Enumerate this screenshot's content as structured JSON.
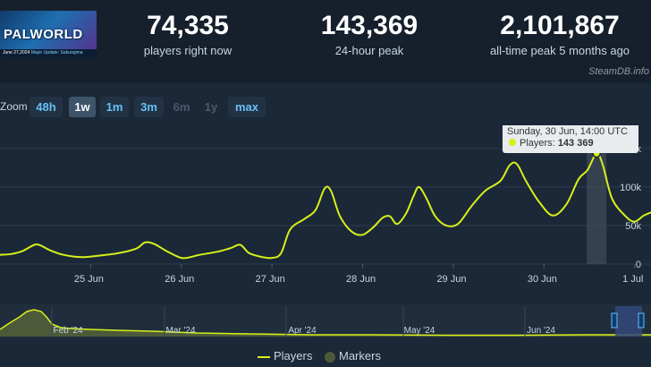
{
  "game": {
    "logo_text": "PALWORLD",
    "banner_date": "June 27,2024",
    "banner_update": "Major Update: Sakurajima"
  },
  "stats": [
    {
      "value": "74,335",
      "label": "players right now"
    },
    {
      "value": "143,369",
      "label": "24-hour peak"
    },
    {
      "value": "2,101,867",
      "label": "all-time peak 5 months ago"
    }
  ],
  "credit": "SteamDB.info",
  "zoom": {
    "label": "Zoom",
    "buttons": [
      {
        "label": "48h",
        "state": "normal"
      },
      {
        "label": "1w",
        "state": "active"
      },
      {
        "label": "1m",
        "state": "normal"
      },
      {
        "label": "3m",
        "state": "normal"
      },
      {
        "label": "6m",
        "state": "disabled"
      },
      {
        "label": "1y",
        "state": "disabled"
      },
      {
        "label": "max",
        "state": "normal"
      }
    ]
  },
  "tooltip": {
    "title": "Sunday, 30 Jun, 14:00 UTC",
    "series_label": "Players:",
    "value_text": "143 369"
  },
  "legend": {
    "players": "Players",
    "markers": "Markers"
  },
  "colors": {
    "line": "#d6f01a",
    "background": "#1b2838",
    "header_bg": "#16202d",
    "accent": "#67c1f5",
    "hover_band": "#4a5561"
  },
  "chart_data": {
    "type": "line",
    "x_unit": "days from 24 Jun 2024 00:00 UTC",
    "ylim": [
      0,
      180000
    ],
    "ytick_labels": [
      "0",
      "50k",
      "100k",
      "150k"
    ],
    "ytick_values": [
      0,
      50000,
      100000,
      150000
    ],
    "xtick_labels": [
      "25 Jun",
      "26 Jun",
      "27 Jun",
      "28 Jun",
      "29 Jun",
      "30 Jun",
      "1 Jul"
    ],
    "xtick_values": [
      1,
      2,
      3,
      4,
      5,
      6,
      7
    ],
    "grid": true,
    "hover": {
      "x": 6.58,
      "y": 143369
    },
    "series": [
      {
        "name": "Players",
        "x": [
          0,
          0.12,
          0.25,
          0.38,
          0.45,
          0.55,
          0.7,
          0.9,
          1.1,
          1.3,
          1.5,
          1.6,
          1.7,
          1.85,
          2.0,
          2.1,
          2.2,
          2.4,
          2.55,
          2.65,
          2.75,
          2.9,
          3.0,
          3.1,
          3.2,
          3.35,
          3.48,
          3.58,
          3.65,
          3.75,
          3.88,
          4.0,
          4.12,
          4.22,
          4.3,
          4.38,
          4.48,
          4.56,
          4.62,
          4.7,
          4.8,
          4.92,
          5.05,
          5.2,
          5.35,
          5.52,
          5.62,
          5.7,
          5.8,
          5.95,
          6.1,
          6.25,
          6.38,
          6.48,
          6.58,
          6.65,
          6.75,
          6.9,
          7.0,
          7.1,
          7.18
        ],
        "y": [
          12000,
          13000,
          17000,
          25000,
          24000,
          18000,
          12000,
          9000,
          11000,
          14000,
          20000,
          28000,
          26000,
          16000,
          8000,
          9000,
          12000,
          16000,
          21000,
          25000,
          14000,
          9000,
          8000,
          14000,
          45000,
          58000,
          70000,
          98000,
          95000,
          62000,
          42000,
          38000,
          48000,
          60000,
          62000,
          52000,
          66000,
          88000,
          100000,
          86000,
          62000,
          50000,
          52000,
          75000,
          95000,
          108000,
          128000,
          130000,
          108000,
          80000,
          63000,
          78000,
          110000,
          122000,
          143369,
          128000,
          85000,
          62000,
          55000,
          63000,
          67000
        ]
      }
    ],
    "navigator": {
      "xtick_labels": [
        "Feb '24",
        "Mar '24",
        "Apr '24",
        "May '24",
        "Jun '24"
      ],
      "fill_color": "#4d5a3a"
    }
  }
}
